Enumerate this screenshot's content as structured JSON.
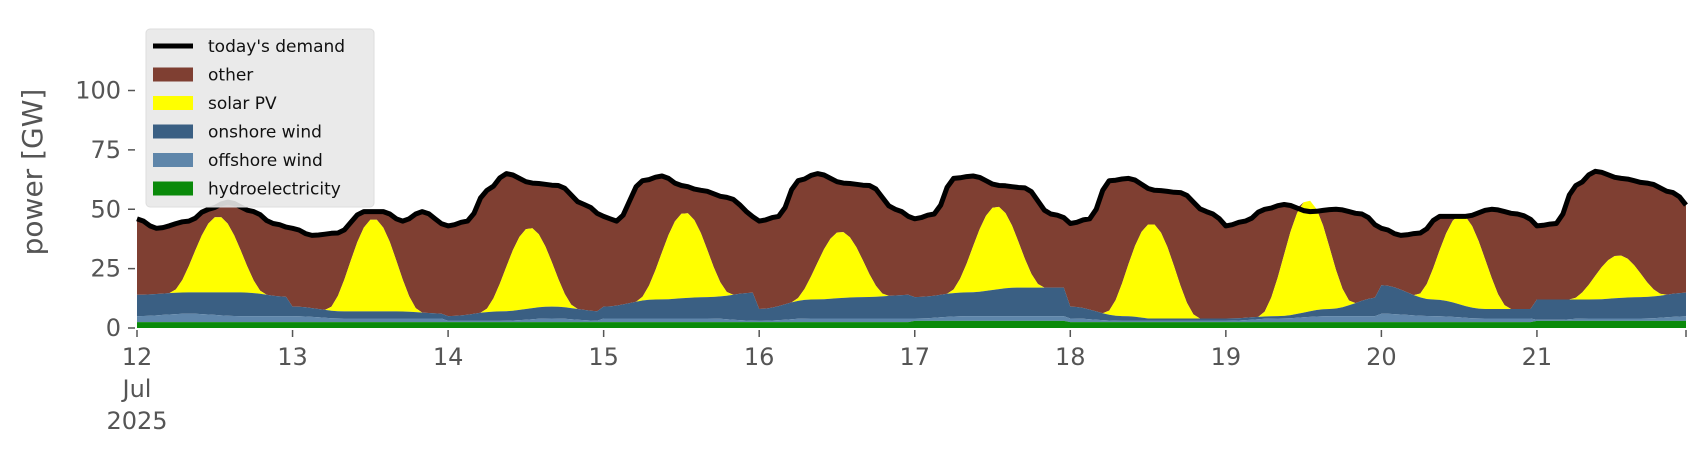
{
  "chart_data": {
    "type": "area",
    "ylabel": "power [GW]",
    "ylim": [
      0,
      120
    ],
    "yticks": [
      0,
      25,
      50,
      75,
      100
    ],
    "x_start": "2025-07-12",
    "x_end": "2025-07-21T23:00",
    "x_tick_labels": [
      {
        "day": "12",
        "month": "Jul",
        "year": "2025"
      },
      {
        "day": "13"
      },
      {
        "day": "14"
      },
      {
        "day": "15"
      },
      {
        "day": "16"
      },
      {
        "day": "17"
      },
      {
        "day": "18"
      },
      {
        "day": "19"
      },
      {
        "day": "20"
      },
      {
        "day": "21"
      }
    ],
    "grid": false,
    "legend_position": "top-left",
    "legend": [
      {
        "label": "today's demand",
        "kind": "line",
        "color": "#000000"
      },
      {
        "label": "other",
        "kind": "patch",
        "color": "#7f3f32"
      },
      {
        "label": "solar PV",
        "kind": "patch",
        "color": "#ffff00"
      },
      {
        "label": "onshore wind",
        "kind": "patch",
        "color": "#3a5f83"
      },
      {
        "label": "offshore wind",
        "kind": "patch",
        "color": "#5f86aa"
      },
      {
        "label": "hydroelectricity",
        "kind": "patch",
        "color": "#0a8a0a"
      }
    ],
    "days": [
      {
        "date": "2025-07-12",
        "demand": [
          [
            0,
            46
          ],
          [
            3,
            42
          ],
          [
            8,
            45
          ],
          [
            11,
            50
          ],
          [
            14,
            53
          ],
          [
            18,
            49
          ],
          [
            21,
            44
          ],
          [
            24,
            42
          ]
        ],
        "solar_peak": 32,
        "wind_offshore": [
          5,
          6,
          5,
          5
        ],
        "wind_onshore": [
          14,
          15,
          15,
          13
        ],
        "hydro": 2.5
      },
      {
        "date": "2025-07-13",
        "demand": [
          [
            0,
            42
          ],
          [
            3,
            39
          ],
          [
            7,
            40
          ],
          [
            11,
            49
          ],
          [
            14,
            49
          ],
          [
            17,
            45
          ],
          [
            20,
            49
          ],
          [
            24,
            43
          ]
        ],
        "solar_peak": 39,
        "wind_offshore": [
          5,
          4,
          4,
          4
        ],
        "wind_onshore": [
          9,
          7,
          7,
          6
        ],
        "hydro": 2.5
      },
      {
        "date": "2025-07-14",
        "demand": [
          [
            0,
            43
          ],
          [
            3,
            45
          ],
          [
            6,
            58
          ],
          [
            9,
            65
          ],
          [
            13,
            61
          ],
          [
            17,
            60
          ],
          [
            21,
            52
          ],
          [
            24,
            47
          ]
        ],
        "solar_peak": 34,
        "wind_offshore": [
          3,
          3,
          4,
          3
        ],
        "wind_onshore": [
          5,
          7,
          9,
          7
        ],
        "hydro": 2.5
      },
      {
        "date": "2025-07-15",
        "demand": [
          [
            0,
            47
          ],
          [
            2,
            45
          ],
          [
            6,
            62
          ],
          [
            9,
            64
          ],
          [
            12,
            60
          ],
          [
            15,
            58
          ],
          [
            19,
            55
          ],
          [
            24,
            46
          ]
        ],
        "solar_peak": 36,
        "wind_offshore": [
          4,
          4,
          4,
          3
        ],
        "wind_onshore": [
          9,
          12,
          13,
          15
        ],
        "hydro": 2.5
      },
      {
        "date": "2025-07-16",
        "demand": [
          [
            0,
            45
          ],
          [
            3,
            47
          ],
          [
            6,
            62
          ],
          [
            9,
            65
          ],
          [
            13,
            61
          ],
          [
            17,
            60
          ],
          [
            21,
            50
          ],
          [
            24,
            46
          ]
        ],
        "solar_peak": 28,
        "wind_offshore": [
          3,
          4,
          4,
          4
        ],
        "wind_onshore": [
          8,
          12,
          13,
          14
        ],
        "hydro": 2.5
      },
      {
        "date": "2025-07-17",
        "demand": [
          [
            0,
            46
          ],
          [
            3,
            48
          ],
          [
            6,
            63
          ],
          [
            9,
            64
          ],
          [
            13,
            60
          ],
          [
            17,
            59
          ],
          [
            21,
            48
          ],
          [
            24,
            46
          ]
        ],
        "solar_peak": 35,
        "wind_offshore": [
          4,
          5,
          5,
          5
        ],
        "wind_onshore": [
          13,
          15,
          17,
          17
        ],
        "hydro": 3
      },
      {
        "date": "2025-07-18",
        "demand": [
          [
            0,
            44
          ],
          [
            3,
            46
          ],
          [
            6,
            62
          ],
          [
            9,
            63
          ],
          [
            13,
            58
          ],
          [
            17,
            57
          ],
          [
            21,
            49
          ],
          [
            24,
            45
          ]
        ],
        "solar_peak": 40,
        "wind_offshore": [
          4,
          3,
          2,
          2
        ],
        "wind_onshore": [
          9,
          5,
          3,
          3
        ],
        "hydro": 2.5
      },
      {
        "date": "2025-07-19",
        "demand": [
          [
            0,
            43
          ],
          [
            3,
            45
          ],
          [
            6,
            50
          ],
          [
            9,
            52
          ],
          [
            13,
            49
          ],
          [
            17,
            50
          ],
          [
            21,
            48
          ],
          [
            24,
            42
          ]
        ],
        "solar_peak": 47,
        "wind_offshore": [
          3,
          4,
          5,
          5
        ],
        "wind_onshore": [
          4,
          5,
          8,
          13
        ],
        "hydro": 2.5
      },
      {
        "date": "2025-07-20",
        "demand": [
          [
            0,
            42
          ],
          [
            3,
            39
          ],
          [
            6,
            40
          ],
          [
            9,
            47
          ],
          [
            13,
            47
          ],
          [
            17,
            50
          ],
          [
            21,
            48
          ],
          [
            24,
            45
          ]
        ],
        "solar_peak": 38,
        "wind_offshore": [
          6,
          5,
          4,
          4
        ],
        "wind_onshore": [
          18,
          12,
          8,
          8
        ],
        "hydro": 2.5
      },
      {
        "date": "2025-07-21",
        "demand": [
          [
            0,
            43
          ],
          [
            3,
            44
          ],
          [
            6,
            60
          ],
          [
            9,
            66
          ],
          [
            13,
            63
          ],
          [
            17,
            61
          ],
          [
            21,
            57
          ],
          [
            24,
            50
          ]
        ],
        "solar_peak": 18,
        "wind_offshore": [
          3,
          4,
          4,
          5
        ],
        "wind_onshore": [
          12,
          12,
          13,
          15
        ],
        "hydro": 3
      }
    ]
  }
}
